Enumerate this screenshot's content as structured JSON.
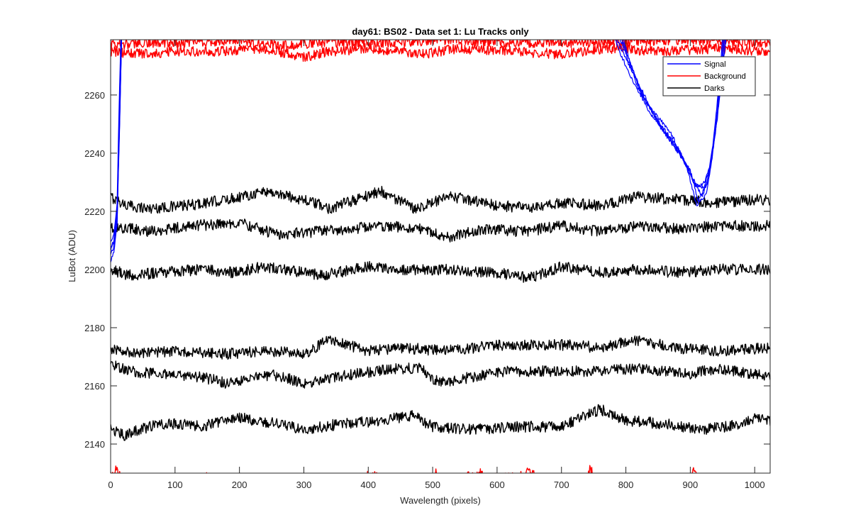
{
  "chart_data": {
    "type": "line",
    "title": "day61: BS02 - Data set 1: Lu Tracks only",
    "xlabel": "Wavelength (pixels)",
    "ylabel": "LuBot (ADU)",
    "xlim": [
      0,
      1024
    ],
    "ylim": [
      2130,
      2279
    ],
    "xticks": [
      0,
      100,
      200,
      300,
      400,
      500,
      600,
      700,
      800,
      900,
      1000
    ],
    "yticks": [
      2140,
      2160,
      2180,
      2200,
      2220,
      2240,
      2260
    ],
    "grid": false,
    "legend": {
      "location": "top-right",
      "entries": [
        {
          "label": "Signal",
          "color": "#0000ff"
        },
        {
          "label": "Background",
          "color": "#ff0000"
        },
        {
          "label": "Darks",
          "color": "#000000"
        }
      ]
    },
    "series": [
      {
        "name": "Darks 1",
        "group": "Darks",
        "color": "#000000",
        "noise": 1.2,
        "points": [
          [
            0,
            2225
          ],
          [
            25,
            2222
          ],
          [
            60,
            2221
          ],
          [
            120,
            2222
          ],
          [
            180,
            2224
          ],
          [
            240,
            2227
          ],
          [
            300,
            2224
          ],
          [
            340,
            2221
          ],
          [
            420,
            2227
          ],
          [
            470,
            2221
          ],
          [
            530,
            2225
          ],
          [
            600,
            2222
          ],
          [
            660,
            2221
          ],
          [
            700,
            2223
          ],
          [
            760,
            2222
          ],
          [
            820,
            2225
          ],
          [
            880,
            2224
          ],
          [
            940,
            2223
          ],
          [
            1000,
            2224
          ],
          [
            1024,
            2224
          ]
        ]
      },
      {
        "name": "Darks 2",
        "group": "Darks",
        "color": "#000000",
        "noise": 1.2,
        "points": [
          [
            0,
            2214
          ],
          [
            30,
            2214
          ],
          [
            60,
            2213
          ],
          [
            120,
            2215
          ],
          [
            200,
            2216
          ],
          [
            260,
            2212
          ],
          [
            320,
            2213
          ],
          [
            420,
            2215
          ],
          [
            480,
            2214
          ],
          [
            520,
            2211
          ],
          [
            580,
            2214
          ],
          [
            640,
            2213
          ],
          [
            700,
            2215
          ],
          [
            760,
            2213
          ],
          [
            820,
            2215
          ],
          [
            880,
            2214
          ],
          [
            950,
            2215
          ],
          [
            1024,
            2215
          ]
        ]
      },
      {
        "name": "Darks 3",
        "group": "Darks",
        "color": "#000000",
        "noise": 1.2,
        "points": [
          [
            0,
            2200
          ],
          [
            30,
            2198
          ],
          [
            80,
            2199
          ],
          [
            140,
            2200
          ],
          [
            190,
            2199
          ],
          [
            240,
            2201
          ],
          [
            300,
            2199
          ],
          [
            330,
            2198
          ],
          [
            400,
            2201
          ],
          [
            460,
            2200
          ],
          [
            520,
            2200
          ],
          [
            600,
            2199
          ],
          [
            650,
            2197
          ],
          [
            700,
            2201
          ],
          [
            760,
            2199
          ],
          [
            820,
            2200
          ],
          [
            880,
            2199
          ],
          [
            950,
            2200
          ],
          [
            1024,
            2200
          ]
        ]
      },
      {
        "name": "Darks 4",
        "group": "Darks",
        "color": "#000000",
        "noise": 1.2,
        "points": [
          [
            0,
            2173
          ],
          [
            40,
            2171
          ],
          [
            100,
            2172
          ],
          [
            180,
            2171
          ],
          [
            240,
            2172
          ],
          [
            300,
            2171
          ],
          [
            340,
            2176
          ],
          [
            400,
            2172
          ],
          [
            460,
            2173
          ],
          [
            520,
            2172
          ],
          [
            600,
            2174
          ],
          [
            660,
            2174
          ],
          [
            720,
            2174
          ],
          [
            760,
            2173
          ],
          [
            810,
            2176
          ],
          [
            880,
            2173
          ],
          [
            940,
            2172
          ],
          [
            1024,
            2173
          ]
        ]
      },
      {
        "name": "Darks 5",
        "group": "Darks",
        "color": "#000000",
        "noise": 1.2,
        "points": [
          [
            0,
            2168
          ],
          [
            30,
            2165
          ],
          [
            80,
            2164
          ],
          [
            140,
            2163
          ],
          [
            180,
            2161
          ],
          [
            250,
            2164
          ],
          [
            300,
            2161
          ],
          [
            380,
            2164
          ],
          [
            440,
            2166
          ],
          [
            480,
            2166
          ],
          [
            510,
            2161
          ],
          [
            560,
            2163
          ],
          [
            620,
            2165
          ],
          [
            700,
            2165
          ],
          [
            760,
            2165
          ],
          [
            820,
            2166
          ],
          [
            860,
            2165
          ],
          [
            900,
            2164
          ],
          [
            940,
            2166
          ],
          [
            1000,
            2164
          ],
          [
            1024,
            2163
          ]
        ]
      },
      {
        "name": "Darks 6",
        "group": "Darks",
        "color": "#000000",
        "noise": 1.2,
        "points": [
          [
            0,
            2145
          ],
          [
            20,
            2143
          ],
          [
            60,
            2146
          ],
          [
            100,
            2147
          ],
          [
            140,
            2146
          ],
          [
            200,
            2149
          ],
          [
            260,
            2147
          ],
          [
            300,
            2145
          ],
          [
            360,
            2147
          ],
          [
            420,
            2148
          ],
          [
            470,
            2150
          ],
          [
            500,
            2146
          ],
          [
            560,
            2145
          ],
          [
            640,
            2146
          ],
          [
            700,
            2146
          ],
          [
            760,
            2152
          ],
          [
            800,
            2148
          ],
          [
            860,
            2147
          ],
          [
            920,
            2145
          ],
          [
            960,
            2146
          ],
          [
            1000,
            2149
          ],
          [
            1024,
            2148
          ]
        ]
      },
      {
        "name": "Background 1",
        "group": "Background",
        "color": "#ff0000",
        "noise": 1.1,
        "points": [
          [
            0,
            2277
          ],
          [
            60,
            2278
          ],
          [
            120,
            2278
          ],
          [
            200,
            2279
          ],
          [
            260,
            2277
          ],
          [
            320,
            2278
          ],
          [
            420,
            2278
          ],
          [
            520,
            2279
          ],
          [
            640,
            2278
          ],
          [
            760,
            2278
          ],
          [
            900,
            2279
          ],
          [
            1024,
            2278
          ]
        ]
      },
      {
        "name": "Background 2",
        "group": "Background",
        "color": "#ff0000",
        "noise": 1.1,
        "points": [
          [
            0,
            2275
          ],
          [
            50,
            2274
          ],
          [
            100,
            2275
          ],
          [
            160,
            2275
          ],
          [
            240,
            2276
          ],
          [
            300,
            2273
          ],
          [
            340,
            2275
          ],
          [
            400,
            2276
          ],
          [
            480,
            2274
          ],
          [
            540,
            2276
          ],
          [
            620,
            2275
          ],
          [
            700,
            2274
          ],
          [
            780,
            2276
          ],
          [
            860,
            2275
          ],
          [
            940,
            2276
          ],
          [
            1024,
            2275
          ]
        ]
      },
      {
        "name": "Background 3",
        "group": "Background",
        "color": "#ff0000",
        "noise": 1.1,
        "points": [
          [
            0,
            2129
          ],
          [
            8,
            2131
          ],
          [
            14,
            2129
          ],
          [
            18,
            2128
          ],
          [
            148,
            2127
          ],
          [
            150,
            2130
          ],
          [
            152,
            2127
          ],
          [
            300,
            2127
          ],
          [
            395,
            2128
          ],
          [
            398,
            2130
          ],
          [
            402,
            2128
          ],
          [
            410,
            2130
          ],
          [
            415,
            2128
          ],
          [
            500,
            2128
          ],
          [
            505,
            2131
          ],
          [
            510,
            2128
          ],
          [
            568,
            2129
          ],
          [
            575,
            2130
          ],
          [
            580,
            2128
          ],
          [
            640,
            2129
          ],
          [
            650,
            2131
          ],
          [
            660,
            2129
          ],
          [
            660,
            2127
          ],
          [
            700,
            2127
          ],
          [
            740,
            2128
          ],
          [
            745,
            2132
          ],
          [
            752,
            2128
          ],
          [
            850,
            2127
          ],
          [
            900,
            2128
          ],
          [
            905,
            2131
          ],
          [
            910,
            2128
          ],
          [
            1024,
            2126
          ]
        ]
      },
      {
        "name": "Signal 1",
        "group": "Signal",
        "color": "#0000ff",
        "noise": 0.4,
        "points": [
          [
            0,
            2203
          ],
          [
            5,
            2206
          ],
          [
            10,
            2215
          ],
          [
            14,
            2250
          ],
          [
            17,
            2280
          ],
          [
            786,
            2280
          ],
          [
            790,
            2277
          ],
          [
            810,
            2268
          ],
          [
            840,
            2255
          ],
          [
            870,
            2247
          ],
          [
            895,
            2235
          ],
          [
            910,
            2222
          ],
          [
            925,
            2226
          ],
          [
            935,
            2240
          ],
          [
            945,
            2262
          ],
          [
            952,
            2280
          ],
          [
            1024,
            2280
          ]
        ]
      },
      {
        "name": "Signal 2",
        "group": "Signal",
        "color": "#0000ff",
        "noise": 0.4,
        "points": [
          [
            0,
            2207
          ],
          [
            5,
            2209
          ],
          [
            10,
            2218
          ],
          [
            14,
            2252
          ],
          [
            17,
            2280
          ],
          [
            782,
            2280
          ],
          [
            788,
            2276
          ],
          [
            810,
            2265
          ],
          [
            840,
            2253
          ],
          [
            870,
            2244
          ],
          [
            900,
            2234
          ],
          [
            912,
            2224
          ],
          [
            925,
            2229
          ],
          [
            935,
            2243
          ],
          [
            945,
            2264
          ],
          [
            950,
            2280
          ],
          [
            1024,
            2280
          ]
        ]
      },
      {
        "name": "Signal 3",
        "group": "Signal",
        "color": "#0000ff",
        "noise": 0.4,
        "points": [
          [
            0,
            2210
          ],
          [
            5,
            2212
          ],
          [
            10,
            2222
          ],
          [
            13,
            2255
          ],
          [
            16,
            2280
          ],
          [
            790,
            2280
          ],
          [
            800,
            2274
          ],
          [
            820,
            2262
          ],
          [
            850,
            2251
          ],
          [
            880,
            2242
          ],
          [
            905,
            2231
          ],
          [
            918,
            2225
          ],
          [
            928,
            2231
          ],
          [
            938,
            2246
          ],
          [
            948,
            2266
          ],
          [
            953,
            2280
          ],
          [
            1024,
            2280
          ]
        ]
      },
      {
        "name": "Signal 4",
        "group": "Signal",
        "color": "#0000ff",
        "noise": 0.4,
        "points": [
          [
            0,
            2205
          ],
          [
            5,
            2208
          ],
          [
            10,
            2216
          ],
          [
            14,
            2251
          ],
          [
            17,
            2280
          ],
          [
            792,
            2280
          ],
          [
            805,
            2272
          ],
          [
            825,
            2260
          ],
          [
            855,
            2249
          ],
          [
            885,
            2240
          ],
          [
            908,
            2229
          ],
          [
            920,
            2228
          ],
          [
            930,
            2234
          ],
          [
            940,
            2249
          ],
          [
            950,
            2268
          ],
          [
            955,
            2280
          ],
          [
            1024,
            2280
          ]
        ]
      },
      {
        "name": "Signal 5",
        "group": "Signal",
        "color": "#0000ff",
        "noise": 0.4,
        "points": [
          [
            0,
            2208
          ],
          [
            5,
            2210
          ],
          [
            10,
            2220
          ],
          [
            14,
            2253
          ],
          [
            17,
            2280
          ],
          [
            795,
            2280
          ],
          [
            808,
            2270
          ],
          [
            830,
            2258
          ],
          [
            860,
            2247
          ],
          [
            888,
            2238
          ],
          [
            910,
            2228
          ],
          [
            922,
            2230
          ],
          [
            932,
            2236
          ],
          [
            942,
            2252
          ],
          [
            950,
            2270
          ],
          [
            956,
            2280
          ],
          [
            1024,
            2280
          ]
        ]
      }
    ]
  }
}
